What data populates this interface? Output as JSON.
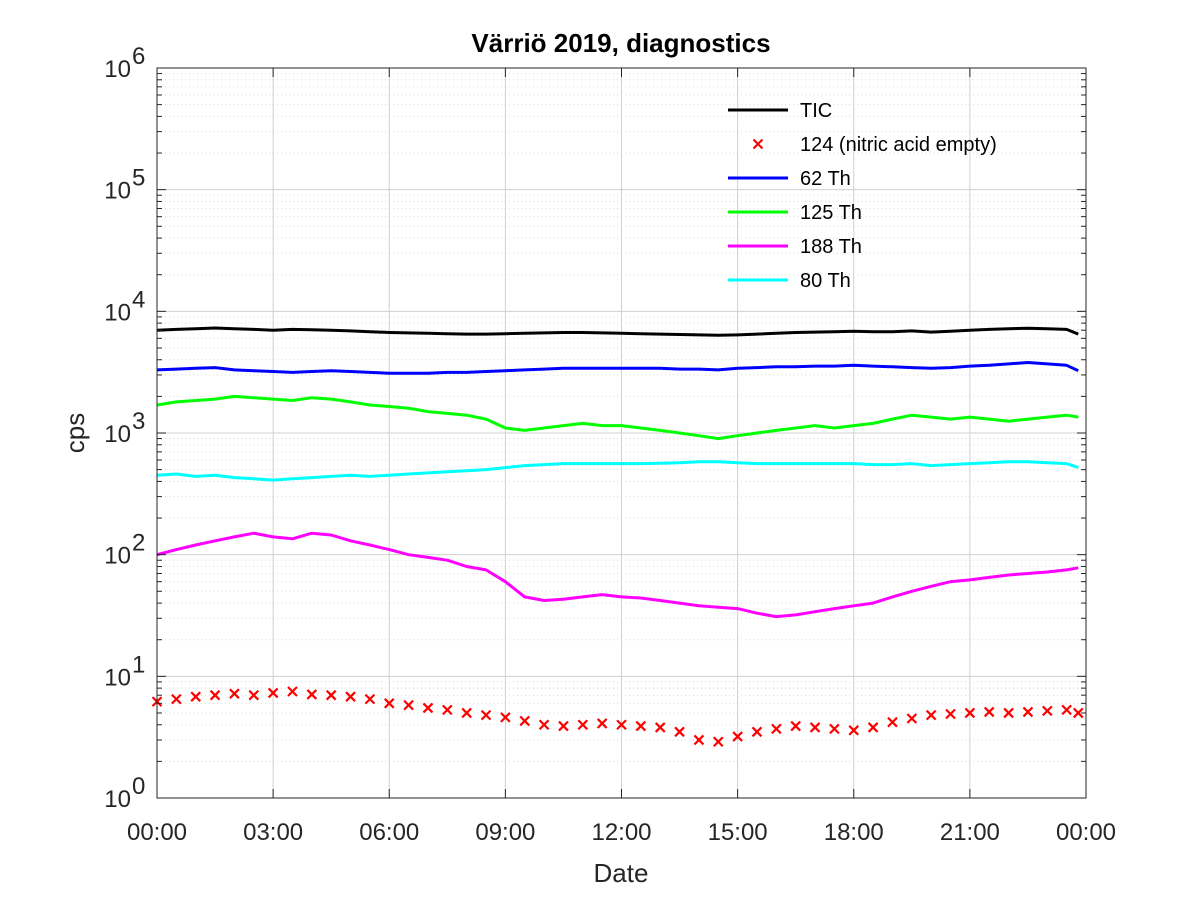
{
  "chart_data": {
    "type": "line",
    "title": "Värriö 2019, diagnostics",
    "xlabel": "Date",
    "ylabel": "cps",
    "y_scale": "log",
    "ylim": [
      1,
      1000000
    ],
    "xlim": [
      "00:00",
      "24:00"
    ],
    "x_ticks": [
      "00:00",
      "03:00",
      "06:00",
      "09:00",
      "12:00",
      "15:00",
      "18:00",
      "21:00",
      "00:00"
    ],
    "y_ticks": [
      {
        "base": "10",
        "exp": "0"
      },
      {
        "base": "10",
        "exp": "1"
      },
      {
        "base": "10",
        "exp": "2"
      },
      {
        "base": "10",
        "exp": "3"
      },
      {
        "base": "10",
        "exp": "4"
      },
      {
        "base": "10",
        "exp": "5"
      },
      {
        "base": "10",
        "exp": "6"
      }
    ],
    "grid": true,
    "minor_grid": true,
    "legend_position": "top-right",
    "x_hours": [
      0,
      0.5,
      1,
      1.5,
      2,
      2.5,
      3,
      3.5,
      4,
      4.5,
      5,
      5.5,
      6,
      6.5,
      7,
      7.5,
      8,
      8.5,
      9,
      9.5,
      10,
      10.5,
      11,
      11.5,
      12,
      12.5,
      13,
      13.5,
      14,
      14.5,
      15,
      15.5,
      16,
      16.5,
      17,
      17.5,
      18,
      18.5,
      19,
      19.5,
      20,
      20.5,
      21,
      21.5,
      22,
      22.5,
      23,
      23.5,
      23.8
    ],
    "series": [
      {
        "name": "TIC",
        "color": "#000000",
        "style": "line",
        "values": [
          7000,
          7100,
          7200,
          7300,
          7200,
          7100,
          7000,
          7100,
          7050,
          7000,
          6900,
          6800,
          6700,
          6650,
          6600,
          6550,
          6500,
          6500,
          6550,
          6600,
          6650,
          6700,
          6700,
          6650,
          6600,
          6550,
          6500,
          6450,
          6400,
          6350,
          6400,
          6500,
          6600,
          6700,
          6750,
          6800,
          6850,
          6800,
          6800,
          6900,
          6750,
          6850,
          7000,
          7100,
          7200,
          7250,
          7200,
          7100,
          6500
        ]
      },
      {
        "name": "124 (nitric acid empty)",
        "color": "#ff0000",
        "style": "marker-x",
        "values": [
          6.2,
          6.5,
          6.8,
          7.0,
          7.2,
          7.0,
          7.3,
          7.5,
          7.1,
          7.0,
          6.8,
          6.5,
          6.0,
          5.8,
          5.5,
          5.3,
          5.0,
          4.8,
          4.6,
          4.3,
          4.0,
          3.9,
          4.0,
          4.1,
          4.0,
          3.9,
          3.8,
          3.5,
          3.0,
          2.9,
          3.2,
          3.5,
          3.7,
          3.9,
          3.8,
          3.7,
          3.6,
          3.8,
          4.2,
          4.5,
          4.8,
          4.9,
          5.0,
          5.1,
          5.0,
          5.1,
          5.2,
          5.3,
          5.0
        ]
      },
      {
        "name": "62 Th",
        "color": "#0000ff",
        "style": "line",
        "values": [
          3300,
          3350,
          3400,
          3450,
          3300,
          3250,
          3200,
          3150,
          3200,
          3250,
          3200,
          3150,
          3100,
          3100,
          3100,
          3150,
          3150,
          3200,
          3250,
          3300,
          3350,
          3400,
          3400,
          3400,
          3400,
          3400,
          3400,
          3350,
          3350,
          3300,
          3400,
          3450,
          3500,
          3500,
          3550,
          3550,
          3600,
          3550,
          3500,
          3450,
          3400,
          3450,
          3550,
          3600,
          3700,
          3800,
          3700,
          3600,
          3250
        ]
      },
      {
        "name": "125 Th",
        "color": "#00ff00",
        "style": "line",
        "values": [
          1700,
          1800,
          1850,
          1900,
          2000,
          1950,
          1900,
          1850,
          1950,
          1900,
          1800,
          1700,
          1650,
          1600,
          1500,
          1450,
          1400,
          1300,
          1100,
          1050,
          1100,
          1150,
          1200,
          1150,
          1150,
          1100,
          1050,
          1000,
          950,
          900,
          950,
          1000,
          1050,
          1100,
          1150,
          1100,
          1150,
          1200,
          1300,
          1400,
          1350,
          1300,
          1350,
          1300,
          1250,
          1300,
          1350,
          1400,
          1350
        ]
      },
      {
        "name": "188 Th",
        "color": "#ff00ff",
        "style": "line",
        "values": [
          100,
          110,
          120,
          130,
          140,
          150,
          140,
          135,
          150,
          145,
          130,
          120,
          110,
          100,
          95,
          90,
          80,
          75,
          60,
          45,
          42,
          43,
          45,
          47,
          45,
          44,
          42,
          40,
          38,
          37,
          36,
          33,
          31,
          32,
          34,
          36,
          38,
          40,
          45,
          50,
          55,
          60,
          62,
          65,
          68,
          70,
          72,
          75,
          78
        ]
      },
      {
        "name": "80 Th",
        "color": "#00ffff",
        "style": "line",
        "values": [
          450,
          460,
          440,
          450,
          430,
          420,
          410,
          420,
          430,
          440,
          450,
          440,
          450,
          460,
          470,
          480,
          490,
          500,
          520,
          540,
          550,
          560,
          560,
          560,
          560,
          560,
          565,
          570,
          580,
          580,
          570,
          560,
          560,
          560,
          560,
          560,
          560,
          550,
          550,
          560,
          540,
          550,
          560,
          570,
          580,
          580,
          570,
          560,
          520
        ]
      }
    ]
  }
}
